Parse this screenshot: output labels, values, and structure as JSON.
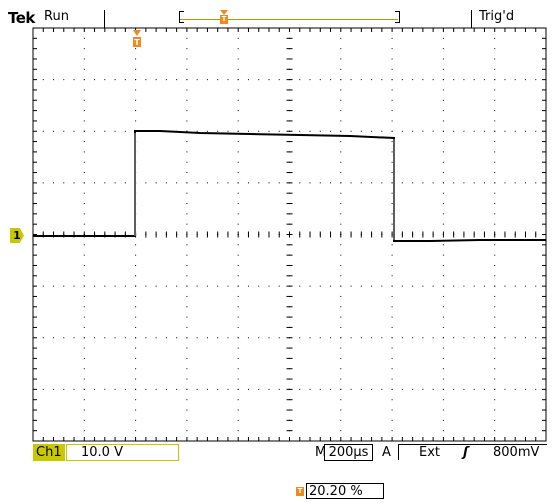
{
  "header": {
    "brand": "Tek",
    "run_status": "Run",
    "trigger_status": "Trig'd",
    "trigger_marker": "T"
  },
  "channel": {
    "marker": "1",
    "label": "Ch1",
    "scale": "10.0 V",
    "color": "#c8c800"
  },
  "timebase": {
    "prefix": "M",
    "value": "200µs"
  },
  "trigger": {
    "prefix": "A",
    "source": "Ext",
    "slope": "ʃ",
    "level": "800mV",
    "marker": "T",
    "position": "20.20 %",
    "marker_color": "#ef8a1e"
  }
}
